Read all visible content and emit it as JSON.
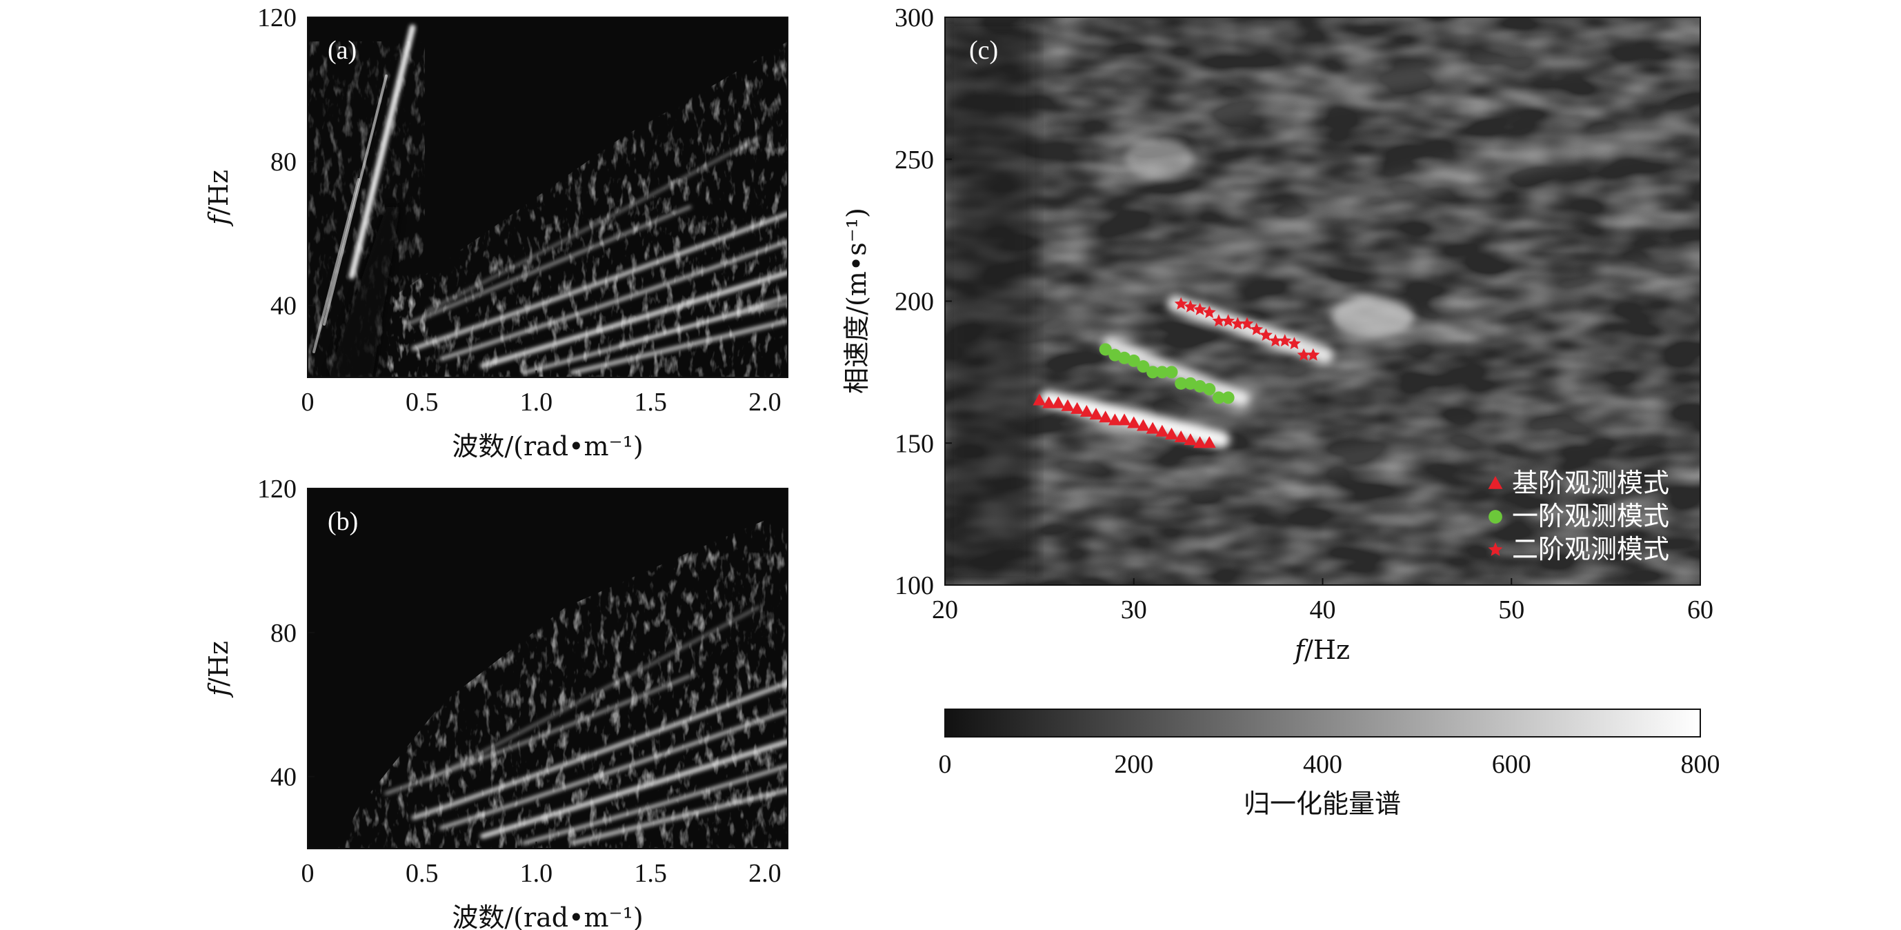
{
  "chart_data": [
    {
      "id": "a",
      "type": "heatmap",
      "panel_label": "(a)",
      "xlabel": "波数/(rad•m⁻¹)",
      "ylabel_italic": "f",
      "ylabel_rest": "/Hz",
      "xlim": [
        0,
        2.1
      ],
      "ylim": [
        20,
        120
      ],
      "xticks": [
        "0",
        "0.5",
        "1.0",
        "1.5",
        "2.0"
      ],
      "xtick_values": [
        0,
        0.5,
        1.0,
        1.5,
        2.0
      ],
      "yticks": [
        "40",
        "80",
        "120"
      ],
      "ytick_values": [
        40,
        80,
        120
      ],
      "colormap": "grayscale",
      "features": [
        {
          "kind": "linear_event",
          "k": [
            0.02,
            0.42
          ],
          "f": [
            30,
            117
          ]
        },
        {
          "kind": "dispersive_energy",
          "k": [
            0.45,
            2.1
          ],
          "f": [
            22,
            110
          ]
        }
      ]
    },
    {
      "id": "b",
      "type": "heatmap",
      "panel_label": "(b)",
      "xlabel": "波数/(rad•m⁻¹)",
      "ylabel_italic": "f",
      "ylabel_rest": "/Hz",
      "xlim": [
        0,
        2.1
      ],
      "ylim": [
        20,
        120
      ],
      "xticks": [
        "0",
        "0.5",
        "1.0",
        "1.5",
        "2.0"
      ],
      "xtick_values": [
        0,
        0.5,
        1.0,
        1.5,
        2.0
      ],
      "yticks": [
        "40",
        "80",
        "120"
      ],
      "ytick_values": [
        40,
        80,
        120
      ],
      "colormap": "grayscale",
      "features": [
        {
          "kind": "dispersive_energy",
          "k": [
            0.2,
            2.1
          ],
          "f": [
            22,
            110
          ]
        }
      ]
    },
    {
      "id": "c",
      "type": "heatmap",
      "panel_label": "(c)",
      "xlabel_italic": "f",
      "xlabel_rest": "/Hz",
      "ylabel": "相速度/(m•s⁻¹)",
      "xlim": [
        20,
        60
      ],
      "ylim": [
        100,
        300
      ],
      "xticks": [
        "20",
        "30",
        "40",
        "50",
        "60"
      ],
      "xtick_values": [
        20,
        30,
        40,
        50,
        60
      ],
      "yticks": [
        "100",
        "150",
        "200",
        "250",
        "300"
      ],
      "ytick_values": [
        100,
        150,
        200,
        250,
        300
      ],
      "colormap": "grayscale",
      "series": [
        {
          "name": "基阶观测模式",
          "marker": "triangle",
          "color": "#e8202a",
          "x": [
            25.0,
            25.5,
            26.0,
            26.5,
            27.0,
            27.5,
            28.0,
            28.5,
            29.0,
            29.5,
            30.0,
            30.5,
            31.0,
            31.5,
            32.0,
            32.5,
            33.0,
            33.5,
            34.0
          ],
          "y": [
            165,
            164,
            164,
            163,
            162,
            161,
            160,
            159,
            158,
            158,
            157,
            156,
            155,
            154,
            153,
            152,
            151,
            150,
            150
          ]
        },
        {
          "name": "一阶观测模式",
          "marker": "circle",
          "color": "#6cc83a",
          "x": [
            28.5,
            29.0,
            29.5,
            30.0,
            30.5,
            31.0,
            31.5,
            32.0,
            32.5,
            33.0,
            33.5,
            34.0,
            34.5,
            35.0
          ],
          "y": [
            183,
            181,
            180,
            179,
            177,
            175,
            175,
            175,
            171,
            171,
            170,
            169,
            166,
            166
          ]
        },
        {
          "name": "二阶观测模式",
          "marker": "star",
          "color": "#e8202a",
          "x": [
            32.5,
            33.0,
            33.5,
            34.0,
            34.5,
            35.0,
            35.5,
            36.0,
            36.5,
            37.0,
            37.5,
            38.0,
            38.5,
            39.0,
            39.5
          ],
          "y": [
            199,
            198,
            197,
            196,
            193,
            193,
            192,
            192,
            190,
            188,
            186,
            186,
            185,
            181,
            181
          ]
        }
      ]
    }
  ],
  "colorbar": {
    "label": "归一化能量谱",
    "ticks": [
      "0",
      "200",
      "400",
      "600",
      "800"
    ],
    "tick_values": [
      0,
      200,
      400,
      600,
      800
    ],
    "range": [
      0,
      800
    ],
    "colors": [
      "#111111",
      "#ffffff"
    ]
  }
}
